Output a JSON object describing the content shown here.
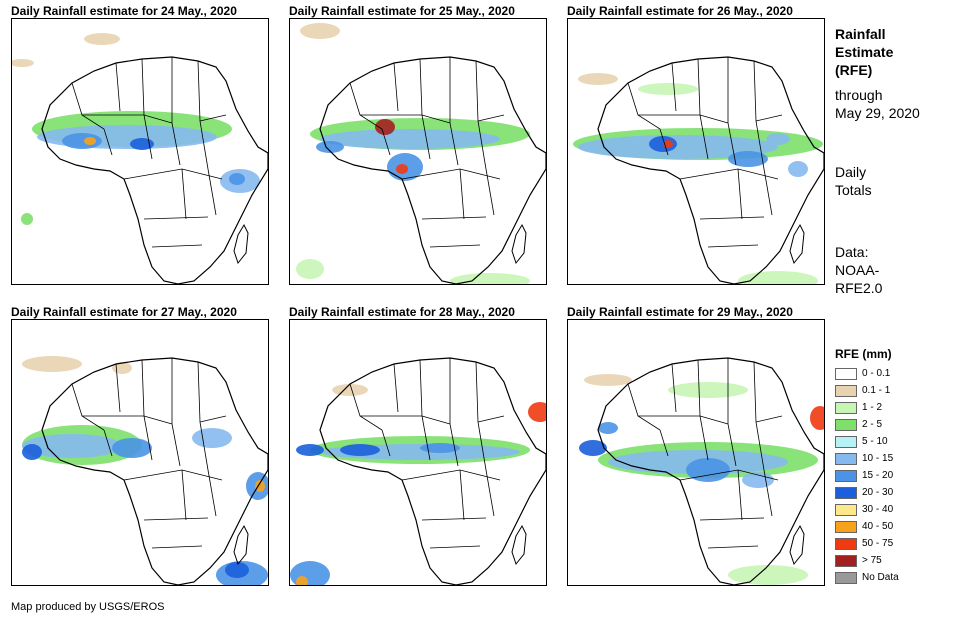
{
  "panels": [
    {
      "title": "Daily Rainfall estimate for 24 May., 2020"
    },
    {
      "title": "Daily Rainfall estimate for 25 May., 2020"
    },
    {
      "title": "Daily Rainfall estimate for 26 May., 2020"
    },
    {
      "title": "Daily Rainfall estimate for 27 May., 2020"
    },
    {
      "title": "Daily Rainfall estimate for 28 May., 2020"
    },
    {
      "title": "Daily Rainfall estimate for 29 May., 2020"
    }
  ],
  "sidebar": {
    "heading_lines": [
      "Rainfall",
      "Estimate",
      "(RFE)"
    ],
    "through_lines": [
      "through",
      "May 29, 2020"
    ],
    "totals_lines": [
      "Daily",
      "Totals"
    ],
    "source_lines": [
      "Data:",
      "NOAA-",
      "RFE2.0"
    ]
  },
  "legend": {
    "title": "RFE (mm)",
    "items": [
      {
        "label": "0 - 0.1",
        "color": "#ffffff"
      },
      {
        "label": "0.1 - 1",
        "color": "#e8d3b0"
      },
      {
        "label": "1 - 2",
        "color": "#c7f5b4"
      },
      {
        "label": "2 - 5",
        "color": "#7ce06a"
      },
      {
        "label": "5 - 10",
        "color": "#b6f1f5"
      },
      {
        "label": "10 - 15",
        "color": "#86b9ee"
      },
      {
        "label": "15 - 20",
        "color": "#4a93e6"
      },
      {
        "label": "20 - 30",
        "color": "#1b5fdc"
      },
      {
        "label": "30 - 40",
        "color": "#fde98a"
      },
      {
        "label": "40 - 50",
        "color": "#f7a21b"
      },
      {
        "label": "50 - 75",
        "color": "#f03a12"
      },
      {
        "label": "> 75",
        "color": "#a32020"
      },
      {
        "label": "No Data",
        "color": "#999999"
      }
    ]
  },
  "footer": {
    "credit": "Map produced by USGS/EROS"
  }
}
